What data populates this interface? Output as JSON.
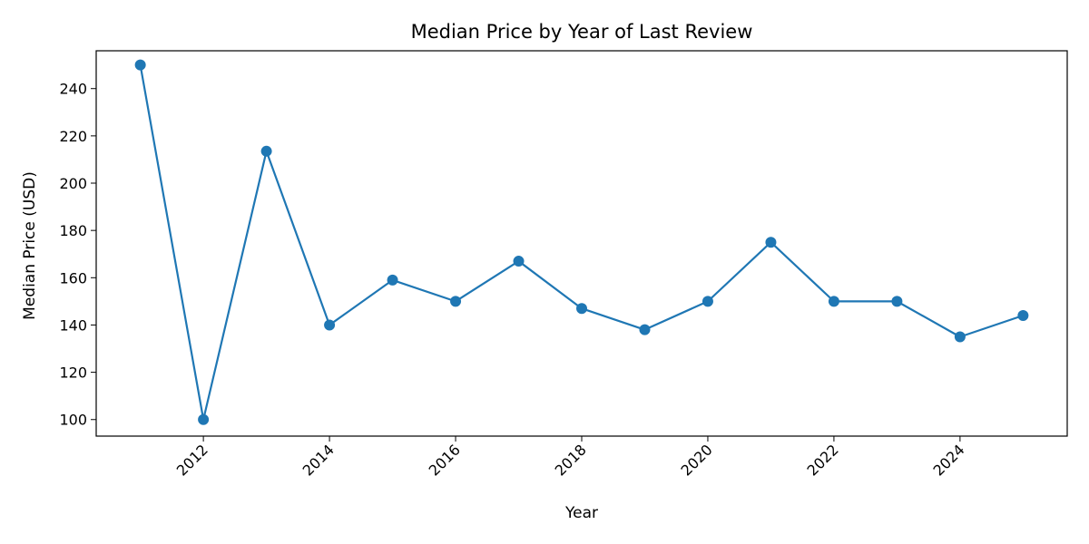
{
  "chart_data": {
    "type": "line",
    "title": "Median Price by Year of Last Review",
    "xlabel": "Year",
    "ylabel": "Median Price (USD)",
    "xlim": [
      2010.3,
      2025.7
    ],
    "ylim": [
      93,
      256
    ],
    "xticks": [
      2012,
      2014,
      2016,
      2018,
      2020,
      2022,
      2024
    ],
    "yticks": [
      100,
      120,
      140,
      160,
      180,
      200,
      220,
      240
    ],
    "grid": false,
    "legend": "none",
    "series": [
      {
        "color": "#1f77b4",
        "x": [
          2011,
          2012,
          2013,
          2014,
          2015,
          2016,
          2017,
          2018,
          2019,
          2020,
          2021,
          2022,
          2023,
          2024,
          2025
        ],
        "y": [
          250,
          100,
          213.5,
          140,
          159,
          150,
          167,
          147,
          138,
          150,
          175,
          150,
          150,
          135,
          144
        ]
      }
    ]
  }
}
